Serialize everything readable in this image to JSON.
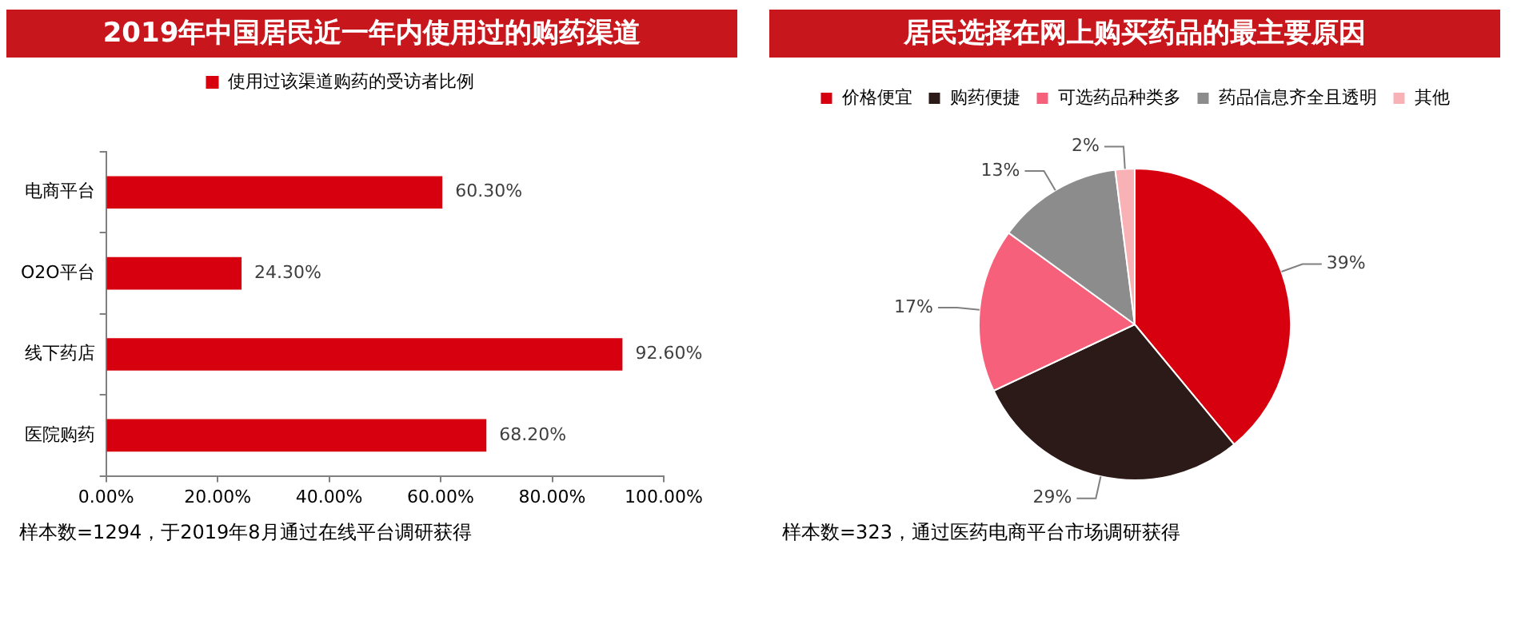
{
  "chart_data": [
    {
      "type": "bar",
      "title": "2019年中国居民近一年内使用过的购药渠道",
      "orientation": "horizontal",
      "categories": [
        "电商平台",
        "O2O平台",
        "线下药店",
        "医院购药"
      ],
      "series": [
        {
          "name": "使用过该渠道购药的受访者比例",
          "color": "#d7000f",
          "values": [
            60.3,
            24.3,
            92.6,
            68.2
          ],
          "value_labels": [
            "60.30%",
            "24.30%",
            "92.60%",
            "68.20%"
          ]
        }
      ],
      "xlim": [
        0,
        100
      ],
      "xticks": [
        {
          "value": 0,
          "label": "0.00%"
        },
        {
          "value": 20,
          "label": "20.00%"
        },
        {
          "value": 40,
          "label": "40.00%"
        },
        {
          "value": 60,
          "label": "60.00%"
        },
        {
          "value": 80,
          "label": "80.00%"
        },
        {
          "value": 100,
          "label": "100.00%"
        }
      ],
      "grid": false,
      "legend": "top",
      "annotations": [
        "样本数=1294，于2019年8月通过在线平台调研获得"
      ]
    },
    {
      "type": "pie",
      "title": "居民选择在网上购买药品的最主要原因",
      "categories": [
        "价格便宜",
        "购药便捷",
        "可选药品种类多",
        "药品信息齐全且透明",
        "其他"
      ],
      "values": [
        39,
        29,
        17,
        13,
        2
      ],
      "colors": [
        "#d7000f",
        "#2b1a17",
        "#f7607a",
        "#8c8c8c",
        "#f8b2b5"
      ],
      "value_labels": [
        "39%",
        "29%",
        "17%",
        "13%",
        "2%"
      ],
      "legend": "top",
      "annotations": [
        "样本数=323，通过医药电商平台市场调研获得"
      ]
    }
  ]
}
